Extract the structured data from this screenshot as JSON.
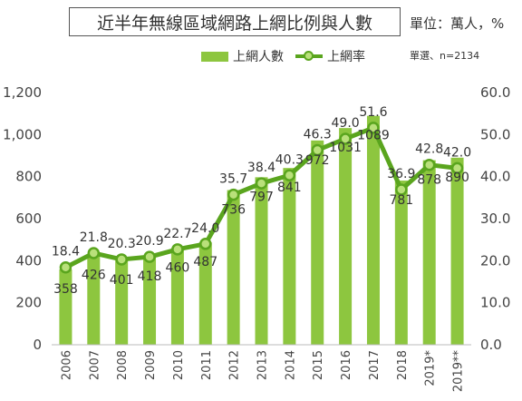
{
  "chart_data": {
    "type": "bar+line",
    "title": "近半年無線區域網路上網比例與人數",
    "unit_note": "單位：萬人，%",
    "sample_note": "單選、n=2134",
    "categories": [
      "2006",
      "2007",
      "2008",
      "2009",
      "2010",
      "2011",
      "2012",
      "2013",
      "2014",
      "2015",
      "2016",
      "2017",
      "2018",
      "2019*",
      "2019**"
    ],
    "series": [
      {
        "name": "上網人數",
        "type": "bar",
        "axis": "left",
        "color": "#8dc63f",
        "values": [
          358,
          426,
          401,
          418,
          460,
          487,
          736,
          797,
          841,
          972,
          1031,
          1089,
          781,
          878,
          890
        ],
        "labels": [
          "358",
          "426",
          "401",
          "418",
          "460",
          "487",
          "736",
          "797",
          "841",
          "972",
          "1031",
          "1089",
          "781",
          "878",
          "890"
        ]
      },
      {
        "name": "上網率",
        "type": "line",
        "axis": "right",
        "color": "#5aa51e",
        "marker_fill": "#b9e07a",
        "values": [
          18.4,
          21.8,
          20.3,
          20.9,
          22.7,
          24.0,
          35.7,
          38.4,
          40.3,
          46.3,
          49.0,
          51.6,
          36.9,
          42.8,
          42.0
        ],
        "labels": [
          "18.4",
          "21.8",
          "20.3",
          "20.9",
          "22.7",
          "24.0",
          "35.7",
          "38.4",
          "40.3",
          "46.3",
          "49.0",
          "51.6",
          "36.9",
          "42.8",
          "42.0"
        ]
      }
    ],
    "y_left": {
      "range": [
        0,
        1200
      ],
      "ticks": [
        0,
        200,
        400,
        600,
        800,
        1000,
        1200
      ],
      "tick_labels": [
        "0",
        "200",
        "400",
        "600",
        "800",
        "1,000",
        "1,200"
      ]
    },
    "y_right": {
      "range": [
        0,
        60
      ],
      "ticks": [
        0,
        10,
        20,
        30,
        40,
        50,
        60
      ],
      "tick_labels": [
        "0.0",
        "10.0",
        "20.0",
        "30.0",
        "40.0",
        "50.0",
        "60.0"
      ]
    },
    "grid": false,
    "legend_position": "top"
  }
}
